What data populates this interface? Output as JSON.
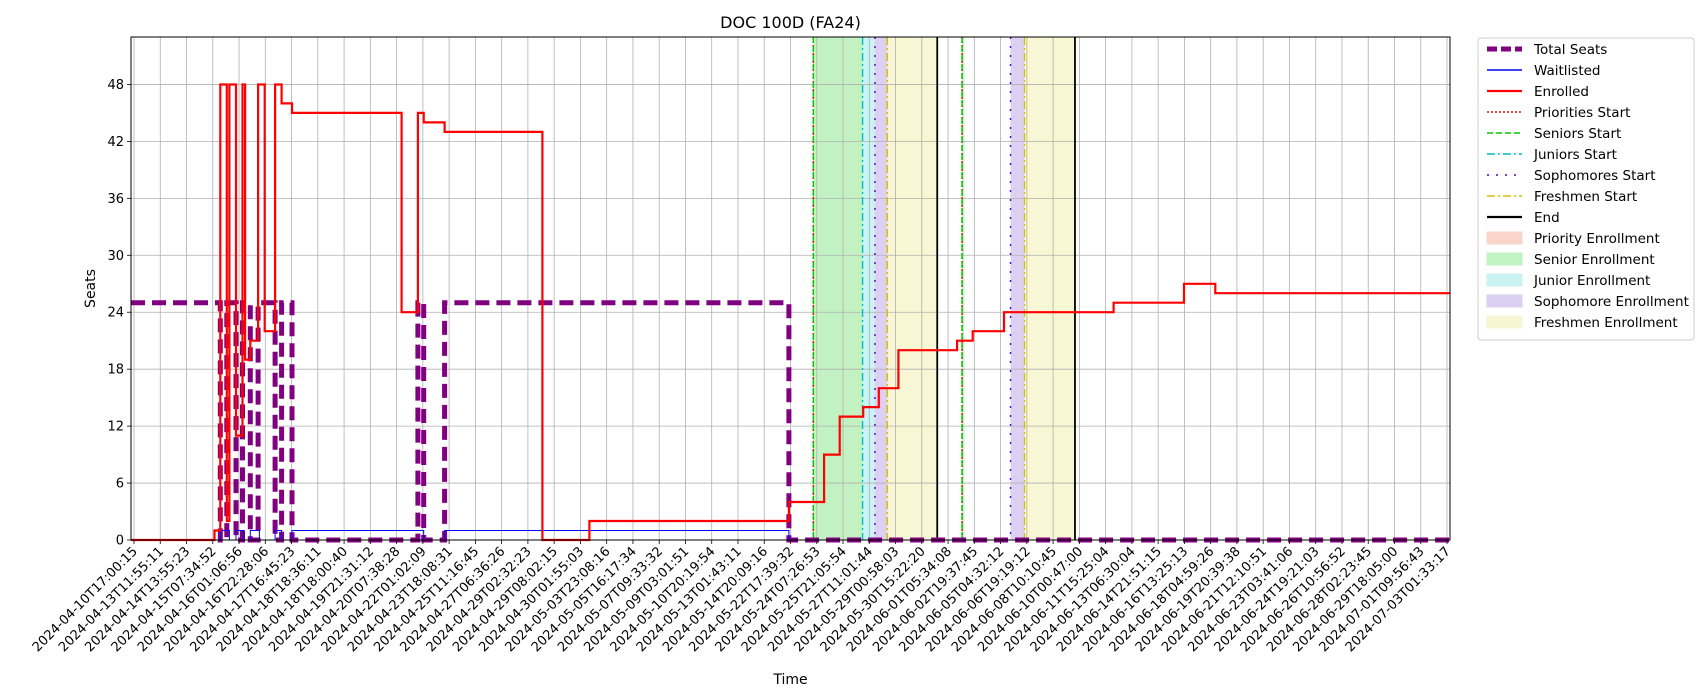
{
  "chart_data": {
    "type": "line",
    "title": "DOC 100D (FA24)",
    "xlabel": "Time",
    "ylabel": "Seats",
    "ylim": [
      0,
      53
    ],
    "yticks": [
      0,
      6,
      12,
      18,
      24,
      30,
      36,
      42,
      48
    ],
    "grid": true,
    "legend_position": "outside-right",
    "x_range": [
      "2024-04-10T17:00:15",
      "2024-07-04T00:00:00"
    ],
    "xtick_labels": [
      "2024-04-10T17:00:15",
      "2024-04-13T11:55:11",
      "2024-04-14T13:55:23",
      "2024-04-15T07:34:52",
      "2024-04-16T01:06:56",
      "2024-04-16T22:28:06",
      "2024-04-17T16:45:23",
      "2024-04-18T18:36:11",
      "2024-04-18T18:00:40",
      "2024-04-19T21:31:12",
      "2024-04-20T07:38:28",
      "2024-04-22T01:02:09",
      "2024-04-23T18:08:31",
      "2024-04-25T11:16:45",
      "2024-04-27T06:36:26",
      "2024-04-29T02:32:23",
      "2024-04-29T08:02:15",
      "2024-04-30T01:55:03",
      "2024-05-03T23:08:16",
      "2024-05-05T16:17:34",
      "2024-05-07T09:33:32",
      "2024-05-09T03:01:51",
      "2024-05-10T20:19:54",
      "2024-05-13T01:43:11",
      "2024-05-14T20:09:16",
      "2024-05-22T17:39:32",
      "2024-05-24T07:26:53",
      "2024-05-25T21:05:54",
      "2024-05-27T11:01:44",
      "2024-05-29T00:58:03",
      "2024-05-30T15:22:20",
      "2024-06-01T05:34:08",
      "2024-06-02T19:37:45",
      "2024-06-05T04:32:12",
      "2024-06-06T19:19:12",
      "2024-06-08T10:10:45",
      "2024-06-10T00:47:00",
      "2024-06-11T15:25:04",
      "2024-06-13T06:30:04",
      "2024-06-14T21:51:15",
      "2024-06-16T13:25:13",
      "2024-06-18T04:59:26",
      "2024-06-19T20:39:38",
      "2024-06-21T12:10:51",
      "2024-06-23T03:41:06",
      "2024-06-24T19:21:03",
      "2024-06-26T10:56:52",
      "2024-06-28T02:23:45",
      "2024-06-29T18:05:00",
      "2024-07-01T09:56:43",
      "2024-07-03T01:33:17"
    ],
    "series": [
      {
        "name": "Total Seats",
        "color": "#800080",
        "style": "dashed-thick",
        "x": [
          "2024-04-10T17:00:15",
          "2024-04-16T10:00:00",
          "2024-04-16T10:00:00",
          "2024-04-16T20:00:00",
          "2024-04-16T20:00:00",
          "2024-04-17T10:00:00",
          "2024-04-17T10:00:00",
          "2024-04-17T20:00:00",
          "2024-04-17T20:00:00",
          "2024-04-18T08:00:00",
          "2024-04-18T08:00:00",
          "2024-04-18T20:00:00",
          "2024-04-18T20:00:00",
          "2024-04-19T22:00:00",
          "2024-04-19T22:00:00",
          "2024-04-20T08:00:00",
          "2024-04-20T08:00:00",
          "2024-04-21T00:00:00",
          "2024-04-21T00:00:00",
          "2024-04-29T01:00:00",
          "2024-04-29T01:00:00",
          "2024-04-29T10:00:00",
          "2024-04-29T10:00:00",
          "2024-04-30T18:00:00",
          "2024-04-30T18:00:00",
          "2024-05-22T18:00:00",
          "2024-05-22T18:00:00",
          "2024-07-04T00:00:00"
        ],
        "values": [
          25,
          25,
          0,
          0,
          25,
          25,
          0,
          0,
          25,
          25,
          0,
          0,
          25,
          25,
          0,
          0,
          25,
          25,
          0,
          0,
          25,
          25,
          0,
          0,
          25,
          25,
          0,
          0
        ]
      },
      {
        "name": "Waitlisted",
        "color": "#0000ff",
        "style": "solid-thin",
        "x": [
          "2024-04-10T17:00:15",
          "2024-04-16T10:00:00",
          "2024-04-16T10:00:00",
          "2024-04-17T00:00:00",
          "2024-04-17T00:00:00",
          "2024-04-17T10:00:00",
          "2024-04-17T10:00:00",
          "2024-04-17T22:00:00",
          "2024-04-17T22:00:00",
          "2024-04-18T08:00:00",
          "2024-04-18T08:00:00",
          "2024-04-18T22:00:00",
          "2024-04-18T22:00:00",
          "2024-04-19T22:00:00",
          "2024-04-19T22:00:00",
          "2024-04-20T08:00:00",
          "2024-04-20T08:00:00",
          "2024-04-21T00:00:00",
          "2024-04-21T00:00:00",
          "2024-04-29T10:00:00",
          "2024-04-29T10:00:00",
          "2024-04-30T18:00:00",
          "2024-04-30T18:00:00",
          "2024-05-22T18:00:00",
          "2024-05-22T18:00:00",
          "2024-07-04T00:00:00"
        ],
        "values": [
          0,
          0,
          1,
          1,
          0,
          0,
          1,
          1,
          0,
          0,
          1,
          1,
          0,
          0,
          1,
          1,
          0,
          0,
          1,
          1,
          0,
          0,
          1,
          1,
          0,
          0
        ]
      },
      {
        "name": "Enrolled",
        "color": "#ff0000",
        "style": "solid",
        "x": [
          "2024-04-10T17:00:15",
          "2024-04-16T01:00:00",
          "2024-04-16T01:00:00",
          "2024-04-16T10:00:00",
          "2024-04-16T10:00:00",
          "2024-04-16T20:00:00",
          "2024-04-16T20:00:00",
          "2024-04-17T00:00:00",
          "2024-04-17T00:00:00",
          "2024-04-17T10:00:00",
          "2024-04-17T10:00:00",
          "2024-04-17T20:00:00",
          "2024-04-17T20:00:00",
          "2024-04-18T00:00:00",
          "2024-04-18T00:00:00",
          "2024-04-18T08:00:00",
          "2024-04-18T08:00:00",
          "2024-04-18T20:00:00",
          "2024-04-18T20:00:00",
          "2024-04-19T06:00:00",
          "2024-04-19T06:00:00",
          "2024-04-19T22:00:00",
          "2024-04-19T22:00:00",
          "2024-04-20T08:00:00",
          "2024-04-20T08:00:00",
          "2024-04-21T00:00:00",
          "2024-04-21T00:00:00",
          "2024-04-26T20:00:00",
          "2024-04-26T20:00:00",
          "2024-04-28T00:00:00",
          "2024-04-28T00:00:00",
          "2024-04-29T01:00:00",
          "2024-04-29T01:00:00",
          "2024-04-29T10:00:00",
          "2024-04-29T10:00:00",
          "2024-04-30T18:00:00",
          "2024-04-30T18:00:00",
          "2024-05-07T00:00:00",
          "2024-05-07T00:00:00",
          "2024-05-10T00:00:00",
          "2024-05-10T00:00:00",
          "2024-05-22T18:00:00",
          "2024-05-22T18:00:00",
          "2024-05-25T00:00:00",
          "2024-05-25T00:00:00",
          "2024-05-26T00:00:00",
          "2024-05-26T00:00:00",
          "2024-05-27T12:00:00",
          "2024-05-27T12:00:00",
          "2024-05-28T12:00:00",
          "2024-05-28T12:00:00",
          "2024-05-29T18:00:00",
          "2024-05-29T18:00:00",
          "2024-06-02T12:00:00",
          "2024-06-02T12:00:00",
          "2024-06-03T12:00:00",
          "2024-06-03T12:00:00",
          "2024-06-05T12:00:00",
          "2024-06-05T12:00:00",
          "2024-06-12T12:00:00",
          "2024-06-12T12:00:00",
          "2024-06-17T00:00:00",
          "2024-06-17T00:00:00",
          "2024-06-19T00:00:00",
          "2024-06-19T00:00:00",
          "2024-06-22T00:00:00",
          "2024-06-22T00:00:00",
          "2024-06-24T00:00:00",
          "2024-06-24T00:00:00",
          "2024-07-04T00:00:00"
        ],
        "values": [
          0,
          0,
          1,
          1,
          48,
          48,
          2,
          2,
          48,
          48,
          11,
          11,
          48,
          48,
          19,
          19,
          21,
          21,
          48,
          48,
          22,
          22,
          48,
          48,
          46,
          46,
          45,
          45,
          45,
          45,
          24,
          24,
          45,
          45,
          44,
          44,
          43,
          43,
          0,
          0,
          2,
          2,
          4,
          4,
          9,
          9,
          13,
          13,
          14,
          14,
          16,
          16,
          20,
          20,
          21,
          21,
          22,
          22,
          24,
          24,
          25,
          25,
          27,
          27,
          26,
          26,
          26,
          26,
          26,
          26
        ]
      }
    ],
    "vertical_lines": [
      {
        "name": "Priorities Start",
        "color": "#ff0000",
        "style": "dotted",
        "x": [
          "2024-05-24T07:26:53",
          "2024-06-02T19:37:45"
        ]
      },
      {
        "name": "Seniors Start",
        "color": "#00cc00",
        "style": "dashed",
        "x": [
          "2024-05-24T07:26:53",
          "2024-06-02T19:37:45"
        ]
      },
      {
        "name": "Juniors Start",
        "color": "#00bfbf",
        "style": "dashdot",
        "x": [
          "2024-05-27T11:01:44"
        ]
      },
      {
        "name": "Sophomores Start",
        "color": "#4b00d0",
        "style": "loosedot",
        "x": [
          "2024-05-28T06:00:00",
          "2024-06-05T22:00:00"
        ]
      },
      {
        "name": "Freshmen Start",
        "color": "#d4c000",
        "style": "dashdot",
        "x": [
          "2024-05-29T00:58:03",
          "2024-06-06T19:19:12"
        ]
      },
      {
        "name": "End",
        "color": "#000000",
        "style": "solid",
        "x": [
          "2024-06-01T05:34:08",
          "2024-06-10T00:47:00"
        ]
      }
    ],
    "shaded_regions": [
      {
        "name": "Priority Enrollment",
        "color": "#f4b39c",
        "spans": []
      },
      {
        "name": "Senior Enrollment",
        "color": "#90e890",
        "spans": [
          [
            "2024-05-24T07:26:53",
            "2024-05-27T11:01:44"
          ],
          [
            "2024-06-02T19:37:45",
            "2024-06-02T23:00:00"
          ]
        ]
      },
      {
        "name": "Junior Enrollment",
        "color": "#9fe9ea",
        "spans": [
          [
            "2024-05-27T11:01:44",
            "2024-05-28T06:00:00"
          ]
        ]
      },
      {
        "name": "Sophomore Enrollment",
        "color": "#c3a9e8",
        "spans": [
          [
            "2024-05-28T06:00:00",
            "2024-05-29T00:58:03"
          ],
          [
            "2024-06-05T22:00:00",
            "2024-06-06T19:19:12"
          ]
        ]
      },
      {
        "name": "Freshmen Enrollment",
        "color": "#f0f0b0",
        "spans": [
          [
            "2024-05-29T00:58:03",
            "2024-06-01T05:34:08"
          ],
          [
            "2024-06-06T19:19:12",
            "2024-06-10T00:47:00"
          ]
        ]
      }
    ]
  }
}
